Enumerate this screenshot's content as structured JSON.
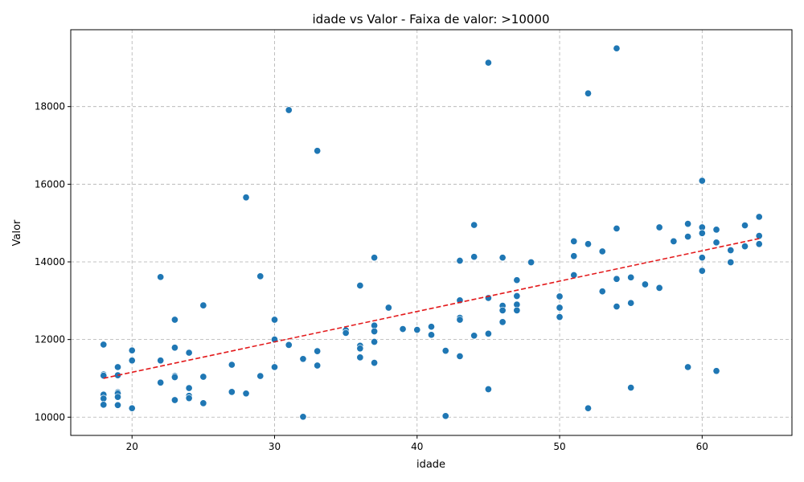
{
  "chart_data": {
    "type": "scatter",
    "title": "idade vs Valor - Faixa de valor: >10000",
    "xlabel": "idade",
    "ylabel": "Valor",
    "xlim": [
      15.7,
      66.3
    ],
    "ylim": [
      9530,
      19980
    ],
    "xticks": [
      20,
      30,
      40,
      50,
      60
    ],
    "yticks": [
      10000,
      12000,
      14000,
      16000,
      18000
    ],
    "grid": true,
    "point_color": "#1f77b4",
    "trend_color": "#e31a1c",
    "trendline": {
      "x": [
        18,
        64
      ],
      "y": [
        11000,
        14600
      ]
    },
    "series": [
      {
        "points": [
          [
            18,
            11870
          ],
          [
            18,
            11100
          ],
          [
            18,
            11070
          ],
          [
            18,
            10580
          ],
          [
            18,
            10480
          ],
          [
            18,
            10320
          ],
          [
            19,
            11290
          ],
          [
            19,
            11080
          ],
          [
            19,
            10640
          ],
          [
            19,
            10610
          ],
          [
            19,
            10520
          ],
          [
            19,
            10310
          ],
          [
            20,
            11720
          ],
          [
            20,
            11460
          ],
          [
            20,
            10230
          ],
          [
            22,
            13610
          ],
          [
            22,
            11460
          ],
          [
            22,
            10890
          ],
          [
            23,
            12510
          ],
          [
            23,
            11790
          ],
          [
            23,
            11060
          ],
          [
            23,
            11030
          ],
          [
            23,
            10440
          ],
          [
            24,
            11660
          ],
          [
            24,
            10750
          ],
          [
            24,
            10550
          ],
          [
            24,
            10490
          ],
          [
            25,
            12880
          ],
          [
            25,
            11040
          ],
          [
            25,
            10360
          ],
          [
            27,
            11350
          ],
          [
            27,
            10650
          ],
          [
            28,
            15660
          ],
          [
            28,
            10610
          ],
          [
            29,
            13630
          ],
          [
            29,
            11060
          ],
          [
            30,
            12510
          ],
          [
            30,
            12000
          ],
          [
            30,
            11290
          ],
          [
            31,
            17910
          ],
          [
            31,
            11860
          ],
          [
            32,
            11500
          ],
          [
            32,
            10010
          ],
          [
            33,
            16860
          ],
          [
            33,
            11700
          ],
          [
            33,
            11330
          ],
          [
            35,
            12240
          ],
          [
            35,
            12170
          ],
          [
            36,
            13390
          ],
          [
            36,
            11840
          ],
          [
            36,
            11770
          ],
          [
            36,
            11540
          ],
          [
            37,
            14110
          ],
          [
            37,
            12360
          ],
          [
            37,
            12210
          ],
          [
            37,
            11940
          ],
          [
            37,
            11400
          ],
          [
            38,
            12820
          ],
          [
            39,
            12270
          ],
          [
            40,
            12250
          ],
          [
            41,
            12330
          ],
          [
            41,
            12120
          ],
          [
            42,
            11710
          ],
          [
            42,
            10030
          ],
          [
            43,
            14030
          ],
          [
            43,
            13010
          ],
          [
            43,
            12560
          ],
          [
            43,
            12510
          ],
          [
            43,
            11570
          ],
          [
            44,
            14950
          ],
          [
            44,
            14130
          ],
          [
            44,
            12100
          ],
          [
            45,
            19130
          ],
          [
            45,
            13070
          ],
          [
            45,
            12150
          ],
          [
            45,
            10720
          ],
          [
            46,
            14110
          ],
          [
            46,
            12870
          ],
          [
            46,
            12750
          ],
          [
            46,
            12450
          ],
          [
            47,
            13530
          ],
          [
            47,
            13120
          ],
          [
            47,
            12900
          ],
          [
            47,
            12750
          ],
          [
            48,
            13990
          ],
          [
            50,
            13110
          ],
          [
            50,
            12820
          ],
          [
            50,
            12580
          ],
          [
            51,
            14530
          ],
          [
            51,
            14150
          ],
          [
            51,
            13660
          ],
          [
            52,
            18340
          ],
          [
            52,
            14460
          ],
          [
            52,
            10230
          ],
          [
            53,
            14270
          ],
          [
            53,
            13240
          ],
          [
            54,
            19500
          ],
          [
            54,
            14860
          ],
          [
            54,
            13560
          ],
          [
            54,
            12850
          ],
          [
            55,
            13600
          ],
          [
            55,
            12940
          ],
          [
            55,
            10760
          ],
          [
            56,
            13420
          ],
          [
            57,
            14890
          ],
          [
            57,
            13330
          ],
          [
            58,
            14530
          ],
          [
            59,
            14980
          ],
          [
            59,
            14650
          ],
          [
            59,
            11290
          ],
          [
            60,
            16090
          ],
          [
            60,
            14890
          ],
          [
            60,
            14740
          ],
          [
            60,
            14110
          ],
          [
            60,
            13770
          ],
          [
            61,
            14830
          ],
          [
            61,
            14500
          ],
          [
            61,
            11190
          ],
          [
            62,
            14300
          ],
          [
            62,
            13990
          ],
          [
            63,
            14940
          ],
          [
            63,
            14400
          ],
          [
            64,
            15160
          ],
          [
            64,
            14670
          ],
          [
            64,
            14460
          ]
        ]
      }
    ]
  }
}
